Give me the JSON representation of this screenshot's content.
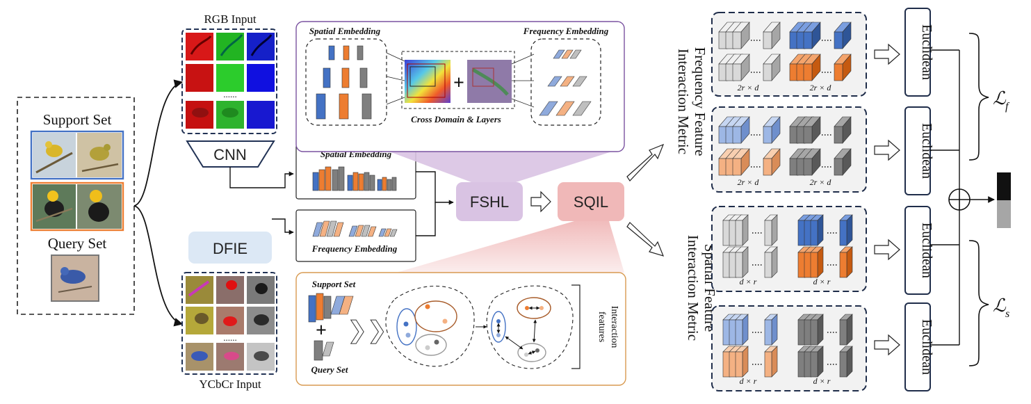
{
  "input": {
    "support_set": "Support Set",
    "query_set": "Query Set"
  },
  "rgb": {
    "title": "RGB Input",
    "dots": "......"
  },
  "ycbcr": {
    "title": "YCbCr Input",
    "dots": "......"
  },
  "modules": {
    "cnn": "CNN",
    "dfie": "DFIE",
    "fshl": "FSHL",
    "sqil": "SQIL"
  },
  "embeddings": {
    "spatial": "Spatial Embedding",
    "frequency": "Frequency Embedding"
  },
  "fshl_panel": {
    "spatial": "Spatial Embedding",
    "frequency": "Frequency Embedding",
    "cross": "Cross Domain & Layers",
    "plus": "+"
  },
  "sqil_panel": {
    "support": "Support Set",
    "query": "Query Set",
    "plus": "+",
    "chevrons": "❯❯",
    "interaction_1": "Interaction",
    "interaction_2": "features"
  },
  "metrics": {
    "frequency_title_1": "Frequency Feature",
    "frequency_title_2": "Interaction Metric",
    "spatial_title_1": "Spatial Feature",
    "spatial_title_2": "Interaction Metric",
    "dim_freq": "2r × d",
    "dim_spatial": "d × r",
    "euclidean": "Euclidean",
    "loss_f": "ℒ",
    "loss_f_sub": "f",
    "loss_s": "ℒ",
    "loss_s_sub": "s"
  },
  "colors": {
    "blue": "#4472c4",
    "orange": "#ed7d31",
    "gray": "#7f7f7f",
    "light_blue": "#8faadc",
    "light_orange": "#f4b183",
    "light_gray": "#bfbfbf",
    "purple_fill": "#d9c3e3",
    "pink_fill": "#f0b8b8",
    "dfie_fill": "#dce8f5"
  }
}
